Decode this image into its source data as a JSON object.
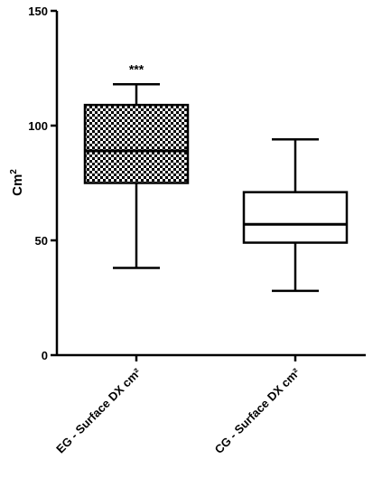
{
  "chart_data": {
    "type": "box",
    "ylabel": "Cm",
    "ylabel_superscript": "2",
    "ylim": [
      0,
      150
    ],
    "yticks": [
      0,
      50,
      100,
      150
    ],
    "grid": false,
    "categories": [
      "EG - Surface DX cm²",
      "CG - Surface DX cm²"
    ],
    "boxes": [
      {
        "name": "EG - Surface DX cm²",
        "min": 38,
        "q1": 75,
        "median": 89,
        "q3": 109,
        "max": 118,
        "pattern": "checkerboard",
        "annotation": "***"
      },
      {
        "name": "CG - Surface DX cm²",
        "min": 28,
        "q1": 49,
        "median": 57,
        "q3": 71,
        "max": 94,
        "pattern": "none",
        "annotation": ""
      }
    ]
  }
}
